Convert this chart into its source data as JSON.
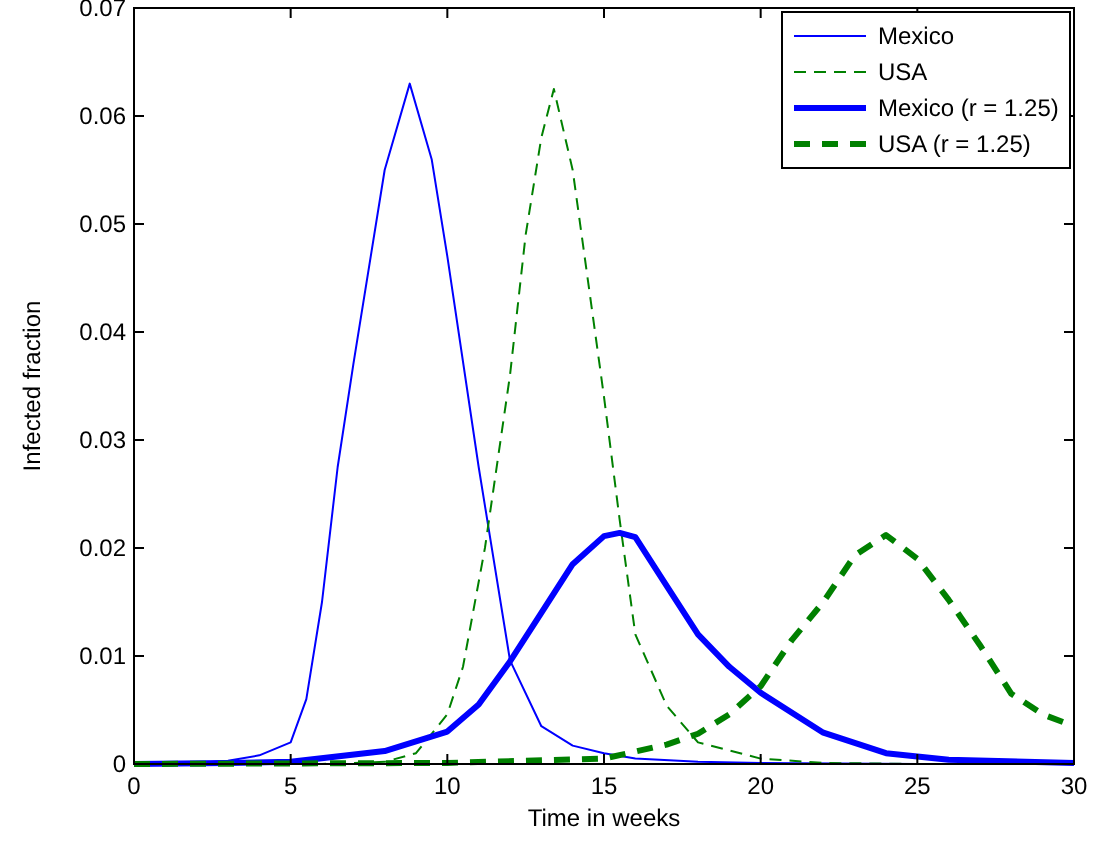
{
  "chart_data": {
    "type": "line",
    "xlabel": "Time in weeks",
    "ylabel": "Infected fraction",
    "xlim": [
      0,
      30
    ],
    "ylim": [
      0,
      0.07
    ],
    "xticks": [
      0,
      5,
      10,
      15,
      20,
      25,
      30
    ],
    "yticks": [
      0,
      0.01,
      0.02,
      0.03,
      0.04,
      0.05,
      0.06,
      0.07
    ],
    "legend": "top right",
    "grid": false,
    "series": [
      {
        "name": "Mexico",
        "color": "#0000ff",
        "line_style": "solid",
        "x": [
          0,
          2,
          3,
          4,
          5,
          5.5,
          6,
          6.5,
          7,
          8,
          8.8,
          9.5,
          10,
          11,
          12,
          13,
          14,
          15,
          16,
          18,
          20,
          25,
          30
        ],
        "values": [
          0,
          0.0001,
          0.0003,
          0.0008,
          0.002,
          0.006,
          0.015,
          0.0275,
          0.037,
          0.055,
          0.063,
          0.056,
          0.047,
          0.0275,
          0.0096,
          0.0035,
          0.0017,
          0.001,
          0.0005,
          0.0002,
          0.0001,
          0,
          0
        ]
      },
      {
        "name": "USA",
        "color": "#008000",
        "line_style": "dashed",
        "x": [
          0,
          6,
          8,
          9,
          10,
          10.5,
          11.2,
          12,
          12.5,
          13,
          13.4,
          14,
          15,
          15.5,
          16,
          17,
          18,
          20,
          22,
          25,
          30
        ],
        "values": [
          0,
          0,
          0.0002,
          0.001,
          0.0046,
          0.009,
          0.02,
          0.036,
          0.049,
          0.058,
          0.0625,
          0.055,
          0.034,
          0.0226,
          0.012,
          0.0054,
          0.002,
          0.0005,
          0.0001,
          0,
          0
        ]
      },
      {
        "name": "Mexico (r = 1.25)",
        "color": "#0000ff",
        "line_style": "solid",
        "x": [
          0,
          3,
          5,
          8,
          10,
          11,
          12,
          13,
          14,
          15,
          15.5,
          16,
          17,
          18,
          19,
          20,
          22,
          24,
          26,
          30
        ],
        "values": [
          0,
          0.0001,
          0.0002,
          0.0012,
          0.003,
          0.0055,
          0.0095,
          0.014,
          0.0185,
          0.0211,
          0.0214,
          0.021,
          0.0165,
          0.012,
          0.009,
          0.0066,
          0.0029,
          0.001,
          0.0004,
          0.0001
        ]
      },
      {
        "name": "USA (r = 1.25)",
        "color": "#008000",
        "line_style": "dashed",
        "x": [
          0,
          10,
          15,
          17,
          18,
          19,
          20,
          21,
          22,
          23,
          24,
          25,
          26,
          27,
          28,
          29,
          30
        ],
        "values": [
          0,
          0.0001,
          0.0005,
          0.0018,
          0.0028,
          0.0046,
          0.0072,
          0.0115,
          0.015,
          0.0193,
          0.0212,
          0.019,
          0.0152,
          0.011,
          0.0065,
          0.0046,
          0.0035
        ]
      }
    ]
  }
}
